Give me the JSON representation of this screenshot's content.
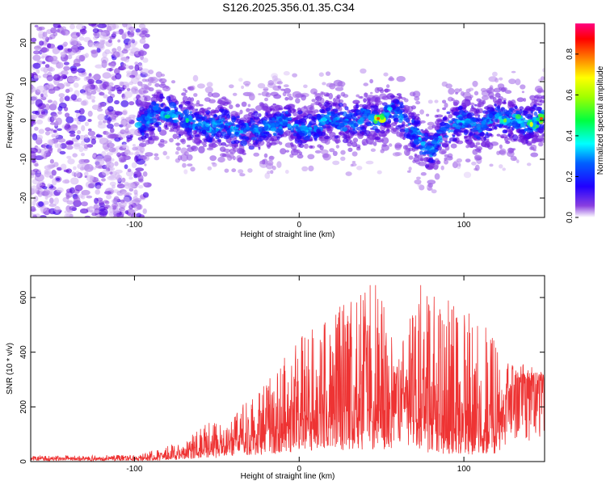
{
  "figure": {
    "title": "S126.2025.356.01.35.C34"
  },
  "chart_data": [
    {
      "type": "heatmap",
      "title": "S126.2025.356.01.35.C34",
      "xlabel": "Height of straight line (km)",
      "ylabel": "Frequency (Hz)",
      "xlim": [
        -163,
        149
      ],
      "ylim": [
        -25,
        25
      ],
      "x_ticks": [
        -100,
        0,
        100
      ],
      "y_ticks": [
        -20,
        -10,
        0,
        10,
        20
      ],
      "x_tick_labels": [
        "-100",
        "0",
        "100"
      ],
      "y_tick_labels": [
        "-20",
        "-10",
        "0",
        "10",
        "20"
      ],
      "colorbar": {
        "label": "Normalized spectral amplitude",
        "range": [
          0,
          0.95
        ],
        "ticks": [
          0.0,
          0.2,
          0.4,
          0.6,
          0.8
        ],
        "tick_labels": [
          "0.0",
          "0.2",
          "0.4",
          "0.6",
          "0.8"
        ],
        "colormap": [
          "#ffffff",
          "#6a00c8",
          "#0000ff",
          "#00ffff",
          "#00ff00",
          "#ffff00",
          "#ff8000",
          "#ff0000",
          "#ff0080"
        ]
      },
      "ridge": [
        {
          "x": -97,
          "f": -1.5
        },
        {
          "x": -88,
          "f": 1.5
        },
        {
          "x": -78,
          "f": 2
        },
        {
          "x": -68,
          "f": 0
        },
        {
          "x": -55,
          "f": -2
        },
        {
          "x": -45,
          "f": -1
        },
        {
          "x": -35,
          "f": -3
        },
        {
          "x": -20,
          "f": -2
        },
        {
          "x": -8,
          "f": 0
        },
        {
          "x": 5,
          "f": -3
        },
        {
          "x": 18,
          "f": 1
        },
        {
          "x": 30,
          "f": -1
        },
        {
          "x": 40,
          "f": 1
        },
        {
          "x": 48,
          "f": 0
        },
        {
          "x": 55,
          "f": 3
        },
        {
          "x": 62,
          "f": 1
        },
        {
          "x": 70,
          "f": -3
        },
        {
          "x": 80,
          "f": -8
        },
        {
          "x": 88,
          "f": -2
        },
        {
          "x": 98,
          "f": 0
        },
        {
          "x": 110,
          "f": -2
        },
        {
          "x": 120,
          "f": 1
        },
        {
          "x": 130,
          "f": 0
        },
        {
          "x": 140,
          "f": -1
        },
        {
          "x": 149,
          "f": 1
        }
      ],
      "noise_region": {
        "x_from": -163,
        "x_to": -92
      },
      "hot_spots": [
        {
          "x": -80,
          "f": 1,
          "value": 0.5
        },
        {
          "x": -68,
          "f": 0,
          "value": 0.5
        },
        {
          "x": 48,
          "f": 0.5,
          "value": 0.85
        },
        {
          "x": 55,
          "f": 3,
          "value": 0.45
        },
        {
          "x": 125,
          "f": 0,
          "value": 0.6
        },
        {
          "x": 133,
          "f": 1,
          "value": 0.55
        },
        {
          "x": 141,
          "f": -1,
          "value": 0.7
        },
        {
          "x": 147,
          "f": 0.5,
          "value": 0.85
        }
      ]
    },
    {
      "type": "line",
      "xlabel": "Height of straight line (km)",
      "ylabel": "SNR (10 * v/v)",
      "xlim": [
        -163,
        149
      ],
      "ylim": [
        0,
        680
      ],
      "x_ticks": [
        -100,
        0,
        100
      ],
      "y_ticks": [
        0,
        200,
        400,
        600
      ],
      "x_tick_labels": [
        "-100",
        "0",
        "100"
      ],
      "y_tick_labels": [
        "0",
        "200",
        "400",
        "600"
      ],
      "series": [
        {
          "name": "SNR",
          "color": "#ee3333",
          "envelope": [
            {
              "x": -163,
              "base": 10,
              "peak": 20
            },
            {
              "x": -100,
              "base": 10,
              "peak": 25
            },
            {
              "x": -85,
              "base": 15,
              "peak": 45
            },
            {
              "x": -70,
              "base": 25,
              "peak": 80
            },
            {
              "x": -55,
              "base": 40,
              "peak": 150
            },
            {
              "x": -45,
              "base": 60,
              "peak": 140
            },
            {
              "x": -35,
              "base": 80,
              "peak": 220
            },
            {
              "x": -25,
              "base": 90,
              "peak": 260
            },
            {
              "x": -15,
              "base": 110,
              "peak": 330
            },
            {
              "x": -5,
              "base": 130,
              "peak": 420
            },
            {
              "x": 5,
              "base": 150,
              "peak": 480
            },
            {
              "x": 20,
              "base": 160,
              "peak": 560
            },
            {
              "x": 35,
              "base": 170,
              "peak": 600
            },
            {
              "x": 45,
              "base": 170,
              "peak": 670
            },
            {
              "x": 55,
              "base": 170,
              "peak": 520
            },
            {
              "x": 60,
              "base": 300,
              "peak": 360
            },
            {
              "x": 65,
              "base": 200,
              "peak": 500
            },
            {
              "x": 75,
              "base": 130,
              "peak": 670
            },
            {
              "x": 90,
              "base": 110,
              "peak": 600
            },
            {
              "x": 105,
              "base": 100,
              "peak": 560
            },
            {
              "x": 120,
              "base": 110,
              "peak": 450
            },
            {
              "x": 126,
              "base": 250,
              "peak": 360
            },
            {
              "x": 135,
              "base": 290,
              "peak": 360
            },
            {
              "x": 149,
              "base": 300,
              "peak": 330
            }
          ]
        }
      ]
    }
  ]
}
